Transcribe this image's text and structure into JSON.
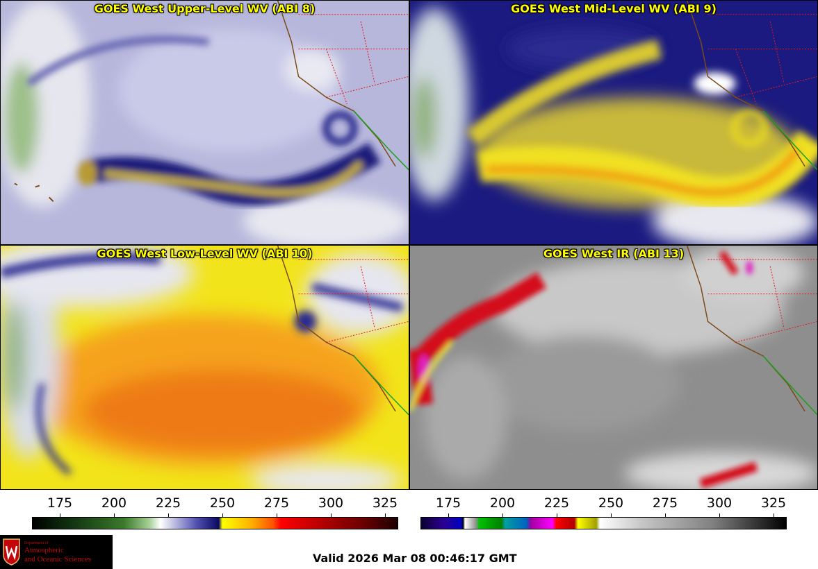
{
  "panels": {
    "p1_title": "GOES West Upper-Level WV (ABI 8)",
    "p2_title": "GOES West Mid-Level WV (ABI 9)",
    "p3_title": "GOES West Low-Level WV (ABI 10)",
    "p4_title": "GOES West IR (ABI 13)"
  },
  "colorbar_wv": {
    "ticks": [
      "175",
      "200",
      "225",
      "250",
      "275",
      "300",
      "325"
    ],
    "range": [
      163,
      331
    ]
  },
  "colorbar_ir": {
    "ticks": [
      "175",
      "200",
      "225",
      "250",
      "275",
      "300",
      "325"
    ],
    "range": [
      163,
      331
    ]
  },
  "logo": {
    "dept": "Department of",
    "line1": "Atmospheric",
    "line2": "and Oceanic Sciences"
  },
  "valid_time": "Valid 2026 Mar 08 00:46:17 GMT"
}
